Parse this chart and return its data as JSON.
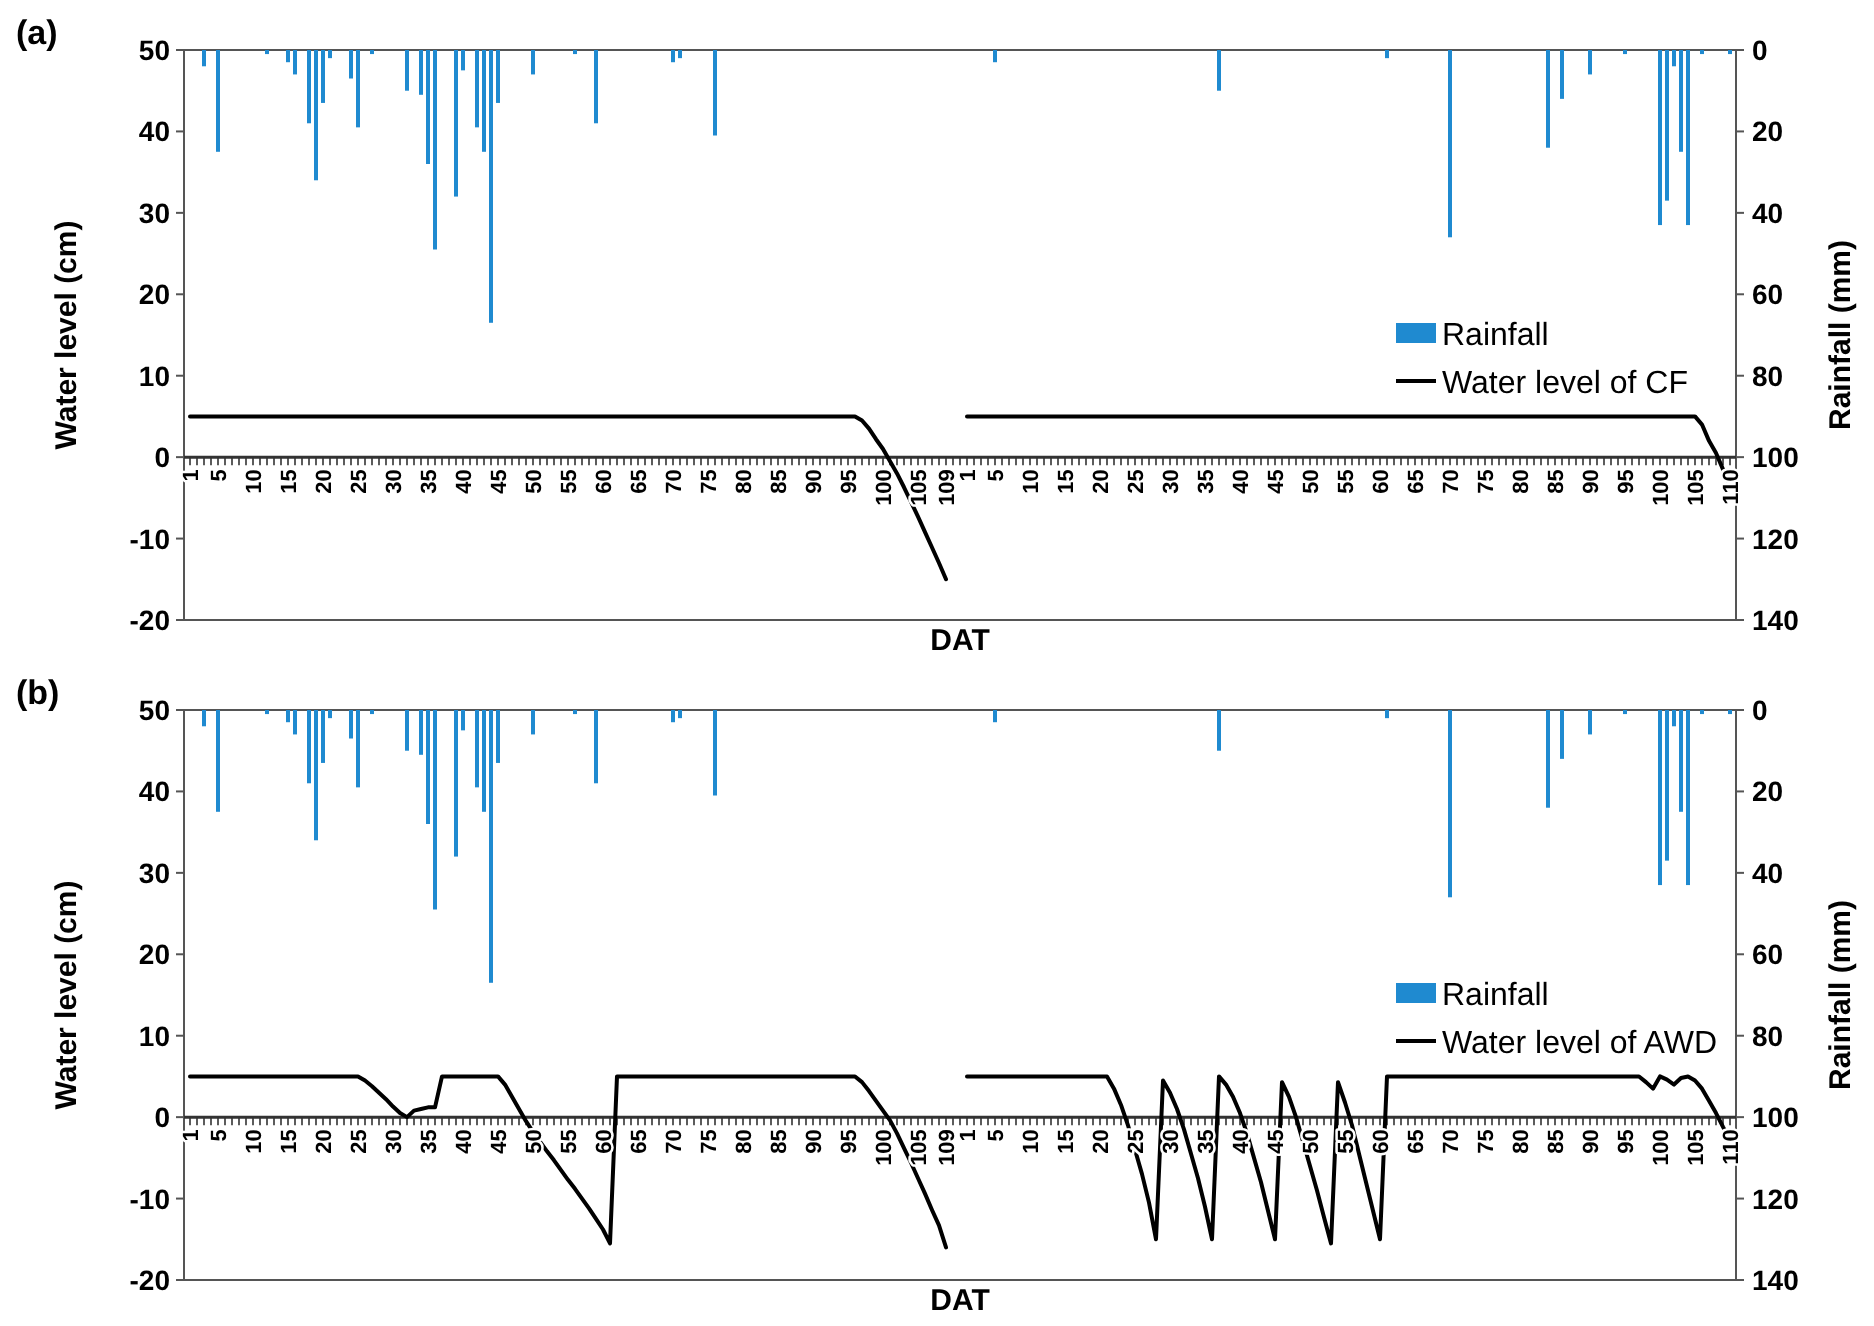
{
  "chart_data": [
    {
      "type": "line",
      "title": "(a)",
      "xlabel": "DAT",
      "ylabel": "Water level (cm)",
      "y2label": "Rainfall (mm)",
      "categories": [
        "1",
        null,
        null,
        null,
        "5",
        null,
        null,
        null,
        null,
        "10",
        null,
        null,
        null,
        null,
        "15",
        null,
        null,
        null,
        null,
        "20",
        null,
        null,
        null,
        null,
        "25",
        null,
        null,
        null,
        null,
        "30",
        null,
        null,
        null,
        null,
        "35",
        null,
        null,
        null,
        null,
        "40",
        null,
        null,
        null,
        null,
        "45",
        null,
        null,
        null,
        null,
        "50",
        null,
        null,
        null,
        null,
        "55",
        null,
        null,
        null,
        null,
        "60",
        null,
        null,
        null,
        null,
        "65",
        null,
        null,
        null,
        null,
        "70",
        null,
        null,
        null,
        null,
        "75",
        null,
        null,
        null,
        null,
        "80",
        null,
        null,
        null,
        null,
        "85",
        null,
        null,
        null,
        null,
        "90",
        null,
        null,
        null,
        null,
        "95",
        null,
        null,
        null,
        null,
        "100",
        null,
        null,
        null,
        null,
        "105",
        null,
        null,
        null,
        "109",
        null,
        null,
        "1",
        null,
        null,
        null,
        "5",
        null,
        null,
        null,
        null,
        "10",
        null,
        null,
        null,
        null,
        "15",
        null,
        null,
        null,
        null,
        "20",
        null,
        null,
        null,
        null,
        "25",
        null,
        null,
        null,
        null,
        "30",
        null,
        null,
        null,
        null,
        "35",
        null,
        null,
        null,
        null,
        "40",
        null,
        null,
        null,
        null,
        "45",
        null,
        null,
        null,
        null,
        "50",
        null,
        null,
        null,
        null,
        "55",
        null,
        null,
        null,
        null,
        "60",
        null,
        null,
        null,
        null,
        "65",
        null,
        null,
        null,
        null,
        "70",
        null,
        null,
        null,
        null,
        "75",
        null,
        null,
        null,
        null,
        "80",
        null,
        null,
        null,
        null,
        "85",
        null,
        null,
        null,
        null,
        "90",
        null,
        null,
        null,
        null,
        "95",
        null,
        null,
        null,
        null,
        "100",
        null,
        null,
        null,
        null,
        "105",
        null,
        null,
        null,
        null,
        "110"
      ],
      "series": [
        {
          "name": "Rainfall",
          "type": "bar",
          "axis": "y2",
          "color": "#1f8ad0",
          "values": [
            0,
            0,
            4,
            0,
            25,
            0,
            0,
            0,
            0,
            0,
            0,
            1,
            0,
            0,
            3,
            6,
            0,
            18,
            32,
            13,
            2,
            0,
            0,
            7,
            19,
            0,
            1,
            0,
            0,
            0,
            0,
            10,
            0,
            11,
            28,
            49,
            0,
            0,
            36,
            5,
            0,
            19,
            25,
            67,
            13,
            0,
            0,
            0,
            0,
            6,
            0,
            0,
            0,
            0,
            0,
            1,
            0,
            0,
            18,
            0,
            0,
            0,
            0,
            0,
            0,
            0,
            0,
            0,
            0,
            3,
            2,
            0,
            0,
            0,
            0,
            21,
            0,
            0,
            0,
            0,
            0,
            0,
            0,
            0,
            0,
            0,
            0,
            0,
            0,
            0,
            0,
            0,
            0,
            0,
            0,
            0,
            0,
            0,
            0,
            0,
            0,
            0,
            0,
            0,
            0,
            0,
            0,
            0,
            0,
            null,
            null,
            0,
            0,
            0,
            0,
            3,
            0,
            0,
            0,
            0,
            0,
            0,
            0,
            0,
            0,
            0,
            0,
            0,
            0,
            0,
            0,
            0,
            0,
            0,
            0,
            0,
            0,
            0,
            0,
            0,
            0,
            0,
            0,
            0,
            0,
            0,
            0,
            10,
            0,
            0,
            0,
            0,
            0,
            0,
            0,
            0,
            0,
            0,
            0,
            0,
            0,
            0,
            0,
            0,
            0,
            0,
            0,
            0,
            0,
            0,
            0,
            2,
            0,
            0,
            0,
            0,
            0,
            0,
            0,
            0,
            46,
            0,
            0,
            0,
            0,
            0,
            0,
            0,
            0,
            0,
            0,
            0,
            0,
            0,
            24,
            0,
            12,
            0,
            0,
            0,
            6,
            0,
            0,
            0,
            0,
            1,
            0,
            0,
            0,
            0,
            43,
            37,
            4,
            25,
            43,
            0,
            1,
            0,
            0,
            0,
            1
          ]
        },
        {
          "name": "Water level of CF",
          "axis": "y",
          "color": "#000000",
          "values": [
            5,
            5,
            5,
            5,
            5,
            5,
            5,
            5,
            5,
            5,
            5,
            5,
            5,
            5,
            5,
            5,
            5,
            5,
            5,
            5,
            5,
            5,
            5,
            5,
            5,
            5,
            5,
            5,
            5,
            5,
            5,
            5,
            5,
            5,
            5,
            5,
            5,
            5,
            5,
            5,
            5,
            5,
            5,
            5,
            5,
            5,
            5,
            5,
            5,
            5,
            5,
            5,
            5,
            5,
            5,
            5,
            5,
            5,
            5,
            5,
            5,
            5,
            5,
            5,
            5,
            5,
            5,
            5,
            5,
            5,
            5,
            5,
            5,
            5,
            5,
            5,
            5,
            5,
            5,
            5,
            5,
            5,
            5,
            5,
            5,
            5,
            5,
            5,
            5,
            5,
            5,
            5,
            5,
            5,
            5,
            5,
            4.5,
            3.5,
            2.2,
            1,
            -0.5,
            -2,
            -3.7,
            -5.5,
            -7.3,
            -9.2,
            -11.1,
            -13,
            -15,
            null,
            null,
            5,
            5,
            5,
            5,
            5,
            5,
            5,
            5,
            5,
            5,
            5,
            5,
            5,
            5,
            5,
            5,
            5,
            5,
            5,
            5,
            5,
            5,
            5,
            5,
            5,
            5,
            5,
            5,
            5,
            5,
            5,
            5,
            5,
            5,
            5,
            5,
            5,
            5,
            5,
            5,
            5,
            5,
            5,
            5,
            5,
            5,
            5,
            5,
            5,
            5,
            5,
            5,
            5,
            5,
            5,
            5,
            5,
            5,
            5,
            5,
            5,
            5,
            5,
            5,
            5,
            5,
            5,
            5,
            5,
            5,
            5,
            5,
            5,
            5,
            5,
            5,
            5,
            5,
            5,
            5,
            5,
            5,
            5,
            5,
            5,
            5,
            5,
            5,
            5,
            5,
            5,
            5,
            5,
            5,
            5,
            5,
            5,
            5,
            5,
            5,
            5,
            5,
            5,
            5,
            5,
            4,
            2,
            0.5,
            -1.5,
            -3.4
          ]
        }
      ],
      "ylim": [
        -20,
        50
      ],
      "yticks": [
        -20,
        -10,
        0,
        10,
        20,
        30,
        40,
        50
      ],
      "y2lim": [
        140,
        0
      ],
      "y2ticks": [
        0,
        20,
        40,
        60,
        80,
        100,
        120,
        140
      ],
      "legend": "right"
    },
    {
      "type": "line",
      "title": "(b)",
      "xlabel": "DAT",
      "ylabel": "Water level (cm)",
      "y2label": "Rainfall (mm)",
      "categories": [
        "1",
        null,
        null,
        null,
        "5",
        null,
        null,
        null,
        null,
        "10",
        null,
        null,
        null,
        null,
        "15",
        null,
        null,
        null,
        null,
        "20",
        null,
        null,
        null,
        null,
        "25",
        null,
        null,
        null,
        null,
        "30",
        null,
        null,
        null,
        null,
        "35",
        null,
        null,
        null,
        null,
        "40",
        null,
        null,
        null,
        null,
        "45",
        null,
        null,
        null,
        null,
        "50",
        null,
        null,
        null,
        null,
        "55",
        null,
        null,
        null,
        null,
        "60",
        null,
        null,
        null,
        null,
        "65",
        null,
        null,
        null,
        null,
        "70",
        null,
        null,
        null,
        null,
        "75",
        null,
        null,
        null,
        null,
        "80",
        null,
        null,
        null,
        null,
        "85",
        null,
        null,
        null,
        null,
        "90",
        null,
        null,
        null,
        null,
        "95",
        null,
        null,
        null,
        null,
        "100",
        null,
        null,
        null,
        null,
        "105",
        null,
        null,
        null,
        "109",
        null,
        null,
        "1",
        null,
        null,
        null,
        "5",
        null,
        null,
        null,
        null,
        "10",
        null,
        null,
        null,
        null,
        "15",
        null,
        null,
        null,
        null,
        "20",
        null,
        null,
        null,
        null,
        "25",
        null,
        null,
        null,
        null,
        "30",
        null,
        null,
        null,
        null,
        "35",
        null,
        null,
        null,
        null,
        "40",
        null,
        null,
        null,
        null,
        "45",
        null,
        null,
        null,
        null,
        "50",
        null,
        null,
        null,
        null,
        "55",
        null,
        null,
        null,
        null,
        "60",
        null,
        null,
        null,
        null,
        "65",
        null,
        null,
        null,
        null,
        "70",
        null,
        null,
        null,
        null,
        "75",
        null,
        null,
        null,
        null,
        "80",
        null,
        null,
        null,
        null,
        "85",
        null,
        null,
        null,
        null,
        "90",
        null,
        null,
        null,
        null,
        "95",
        null,
        null,
        null,
        null,
        "100",
        null,
        null,
        null,
        null,
        "105",
        null,
        null,
        null,
        null,
        "110"
      ],
      "series": [
        {
          "name": "Rainfall",
          "type": "bar",
          "axis": "y2",
          "color": "#1f8ad0",
          "values": [
            0,
            0,
            4,
            0,
            25,
            0,
            0,
            0,
            0,
            0,
            0,
            1,
            0,
            0,
            3,
            6,
            0,
            18,
            32,
            13,
            2,
            0,
            0,
            7,
            19,
            0,
            1,
            0,
            0,
            0,
            0,
            10,
            0,
            11,
            28,
            49,
            0,
            0,
            36,
            5,
            0,
            19,
            25,
            67,
            13,
            0,
            0,
            0,
            0,
            6,
            0,
            0,
            0,
            0,
            0,
            1,
            0,
            0,
            18,
            0,
            0,
            0,
            0,
            0,
            0,
            0,
            0,
            0,
            0,
            3,
            2,
            0,
            0,
            0,
            0,
            21,
            0,
            0,
            0,
            0,
            0,
            0,
            0,
            0,
            0,
            0,
            0,
            0,
            0,
            0,
            0,
            0,
            0,
            0,
            0,
            0,
            0,
            0,
            0,
            0,
            0,
            0,
            0,
            0,
            0,
            0,
            0,
            0,
            0,
            null,
            null,
            0,
            0,
            0,
            0,
            3,
            0,
            0,
            0,
            0,
            0,
            0,
            0,
            0,
            0,
            0,
            0,
            0,
            0,
            0,
            0,
            0,
            0,
            0,
            0,
            0,
            0,
            0,
            0,
            0,
            0,
            0,
            0,
            0,
            0,
            0,
            0,
            10,
            0,
            0,
            0,
            0,
            0,
            0,
            0,
            0,
            0,
            0,
            0,
            0,
            0,
            0,
            0,
            0,
            0,
            0,
            0,
            0,
            0,
            0,
            0,
            2,
            0,
            0,
            0,
            0,
            0,
            0,
            0,
            0,
            46,
            0,
            0,
            0,
            0,
            0,
            0,
            0,
            0,
            0,
            0,
            0,
            0,
            0,
            24,
            0,
            12,
            0,
            0,
            0,
            6,
            0,
            0,
            0,
            0,
            1,
            0,
            0,
            0,
            0,
            43,
            37,
            4,
            25,
            43,
            0,
            1,
            0,
            0,
            0,
            1
          ]
        },
        {
          "name": "Water level of AWD",
          "axis": "y",
          "color": "#000000",
          "values": [
            5,
            5,
            5,
            5,
            5,
            5,
            5,
            5,
            5,
            5,
            5,
            5,
            5,
            5,
            5,
            5,
            5,
            5,
            5,
            5,
            5,
            5,
            5,
            5,
            5,
            4.5,
            3.8,
            3,
            2.2,
            1.3,
            0.5,
            0,
            0.8,
            1,
            1.2,
            1.2,
            5,
            5,
            5,
            5,
            5,
            5,
            5,
            5,
            5,
            4,
            2.5,
            1,
            -0.5,
            -1.8,
            -3,
            -4.2,
            -5.3,
            -6.5,
            -7.7,
            -8.8,
            -10,
            -11.2,
            -12.5,
            -13.8,
            -15.5,
            5,
            5,
            5,
            5,
            5,
            5,
            5,
            5,
            5,
            5,
            5,
            5,
            5,
            5,
            5,
            5,
            5,
            5,
            5,
            5,
            5,
            5,
            5,
            5,
            5,
            5,
            5,
            5,
            5,
            5,
            5,
            5,
            5,
            5,
            5,
            4.3,
            3.2,
            2,
            0.8,
            -0.4,
            -2,
            -3.8,
            -5.6,
            -7.5,
            -9.4,
            -11.4,
            -13.3,
            -16,
            null,
            null,
            5,
            5,
            5,
            5,
            5,
            5,
            5,
            5,
            5,
            5,
            5,
            5,
            5,
            5,
            5,
            5,
            5,
            5,
            5,
            5,
            5,
            3.5,
            1.5,
            -1,
            -4,
            -7,
            -10.5,
            -15,
            4.5,
            3,
            1,
            -1.5,
            -4.5,
            -7.5,
            -11,
            -15,
            5,
            4,
            2.5,
            0.5,
            -2,
            -5,
            -8,
            -11.5,
            -15,
            4.3,
            2.5,
            0,
            -3,
            -6,
            -9,
            -12.3,
            -15.5,
            4.3,
            1.8,
            -1,
            -4.5,
            -8,
            -11.5,
            -15,
            5,
            5,
            5,
            5,
            5,
            5,
            5,
            5,
            5,
            5,
            5,
            5,
            5,
            5,
            5,
            5,
            5,
            5,
            5,
            5,
            5,
            5,
            5,
            5,
            5,
            5,
            5,
            5,
            5,
            5,
            5,
            5,
            5,
            5,
            5,
            5,
            5,
            4.3,
            3.5,
            5,
            4.6,
            4,
            4.8,
            5,
            4.5,
            3.5,
            2,
            0.5,
            -1.2,
            -2.8
          ]
        }
      ],
      "ylim": [
        -20,
        50
      ],
      "yticks": [
        -20,
        -10,
        0,
        10,
        20,
        30,
        40,
        50
      ],
      "y2lim": [
        140,
        0
      ],
      "y2ticks": [
        0,
        20,
        40,
        60,
        80,
        100,
        120,
        140
      ],
      "legend": "right"
    }
  ]
}
